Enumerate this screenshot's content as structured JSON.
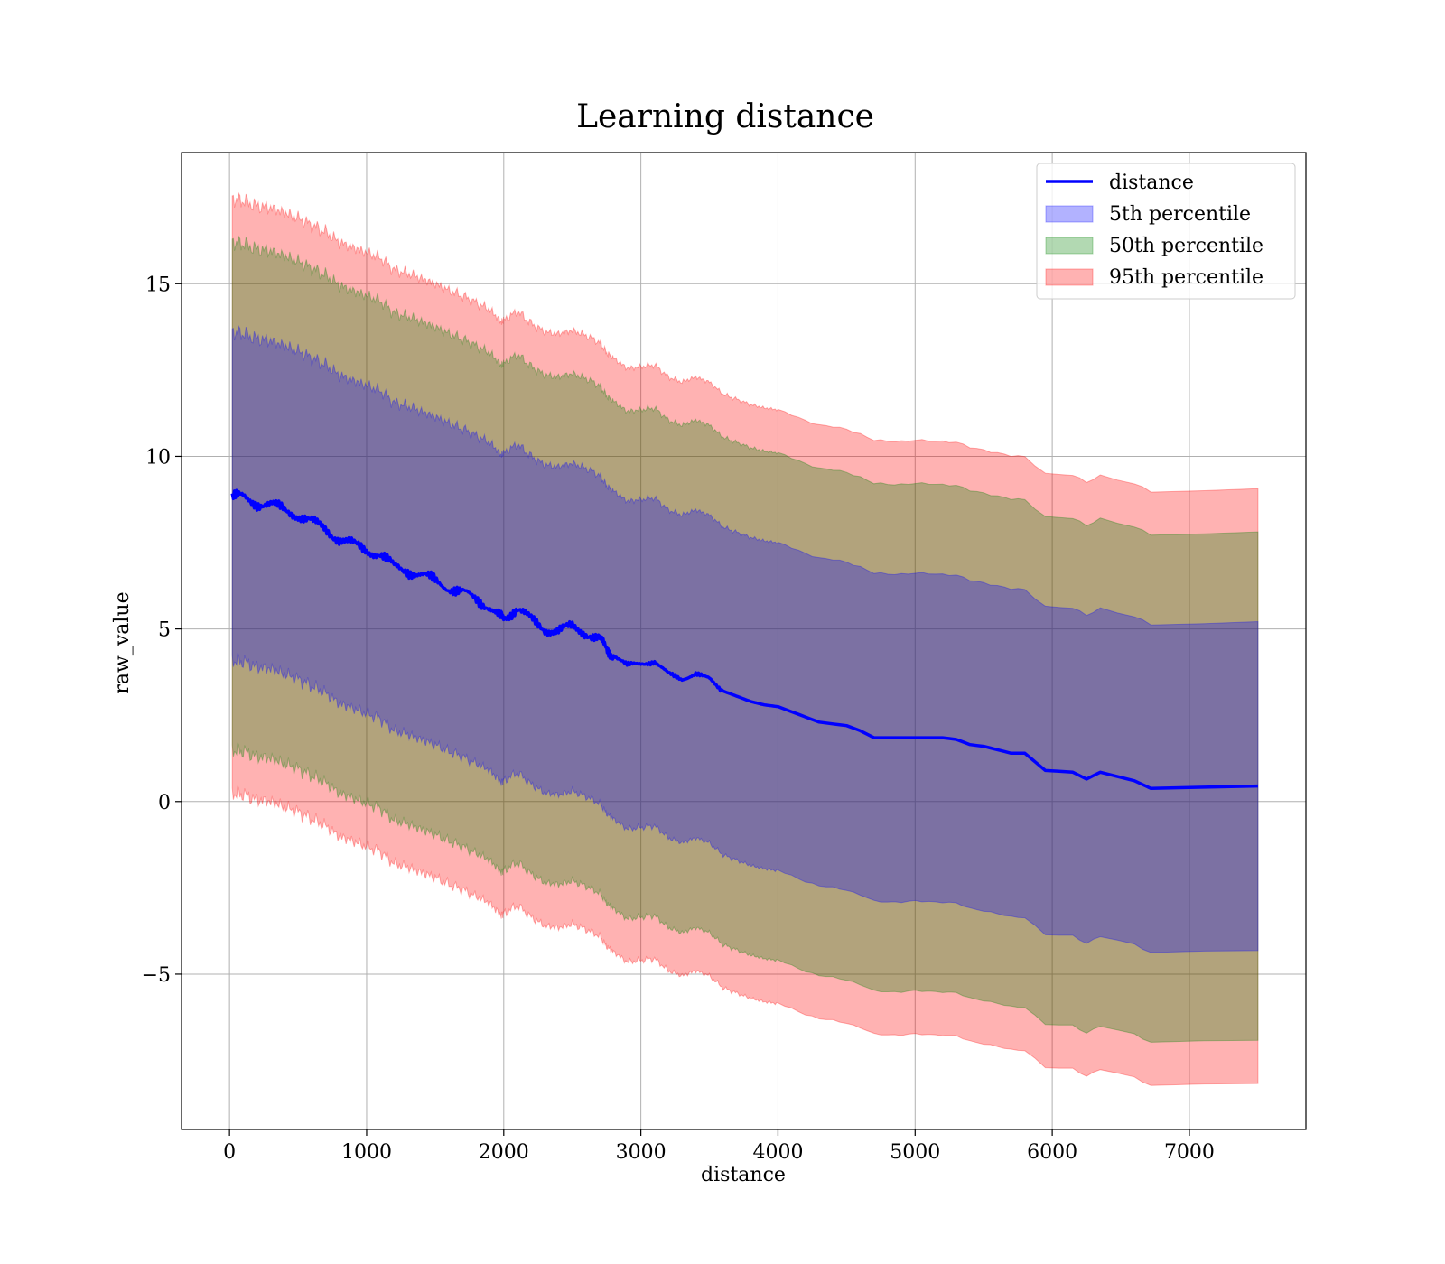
{
  "chart_data": {
    "type": "line",
    "title": "Learning distance",
    "xlabel": "distance",
    "ylabel": "raw_value",
    "xlim": [
      -350,
      7850
    ],
    "ylim": [
      -9.5,
      18.8
    ],
    "xticks": [
      0,
      1000,
      2000,
      3000,
      4000,
      5000,
      6000,
      7000
    ],
    "yticks": [
      -5,
      0,
      5,
      10,
      15
    ],
    "ytick_labels": [
      "−5",
      "0",
      "5",
      "10",
      "15"
    ],
    "grid": true,
    "legend_position": "top-right",
    "colors": {
      "line": "#0000ff",
      "p5": "#0000ff",
      "p50": "#008000",
      "p95": "#ff0000"
    },
    "x": [
      20,
      100,
      200,
      300,
      400,
      500,
      600,
      700,
      800,
      900,
      1000,
      1100,
      1200,
      1300,
      1400,
      1500,
      1600,
      1700,
      1800,
      1900,
      1980,
      2000,
      2100,
      2200,
      2300,
      2400,
      2500,
      2600,
      2700,
      2750,
      2800,
      2900,
      3000,
      3100,
      3200,
      3300,
      3400,
      3500,
      3600,
      3700,
      3800,
      3900,
      4000,
      4100,
      4200,
      4300,
      4400,
      4500,
      4600,
      4700,
      4800,
      4900,
      5000,
      5100,
      5200,
      5300,
      5400,
      5500,
      5600,
      5700,
      5800,
      5950,
      6150,
      6250,
      6350,
      6600,
      6720,
      7500
    ],
    "series": [
      {
        "name": "distance",
        "kind": "line",
        "values": [
          8.85,
          8.8,
          8.65,
          8.6,
          8.45,
          8.3,
          8.1,
          7.9,
          7.6,
          7.45,
          7.3,
          7.15,
          6.8,
          6.7,
          6.55,
          6.4,
          6.2,
          6.05,
          5.85,
          5.65,
          5.3,
          5.35,
          5.6,
          5.25,
          5.0,
          4.95,
          5.05,
          4.9,
          4.7,
          4.4,
          4.25,
          3.95,
          4.0,
          4.05,
          3.7,
          3.55,
          3.7,
          3.55,
          3.2,
          3.05,
          2.9,
          2.8,
          2.75,
          2.6,
          2.45,
          2.3,
          2.25,
          2.2,
          2.05,
          1.85,
          1.85,
          1.85,
          1.85,
          1.85,
          1.85,
          1.8,
          1.65,
          1.6,
          1.5,
          1.4,
          1.4,
          0.9,
          0.85,
          0.65,
          0.85,
          0.6,
          0.38,
          0.45
        ]
      },
      {
        "name": "5th percentile",
        "kind": "band",
        "half_width": 4.75
      },
      {
        "name": "50th percentile",
        "kind": "band",
        "half_width": 7.35
      },
      {
        "name": "95th percentile",
        "kind": "band",
        "half_width": 8.6
      }
    ]
  }
}
